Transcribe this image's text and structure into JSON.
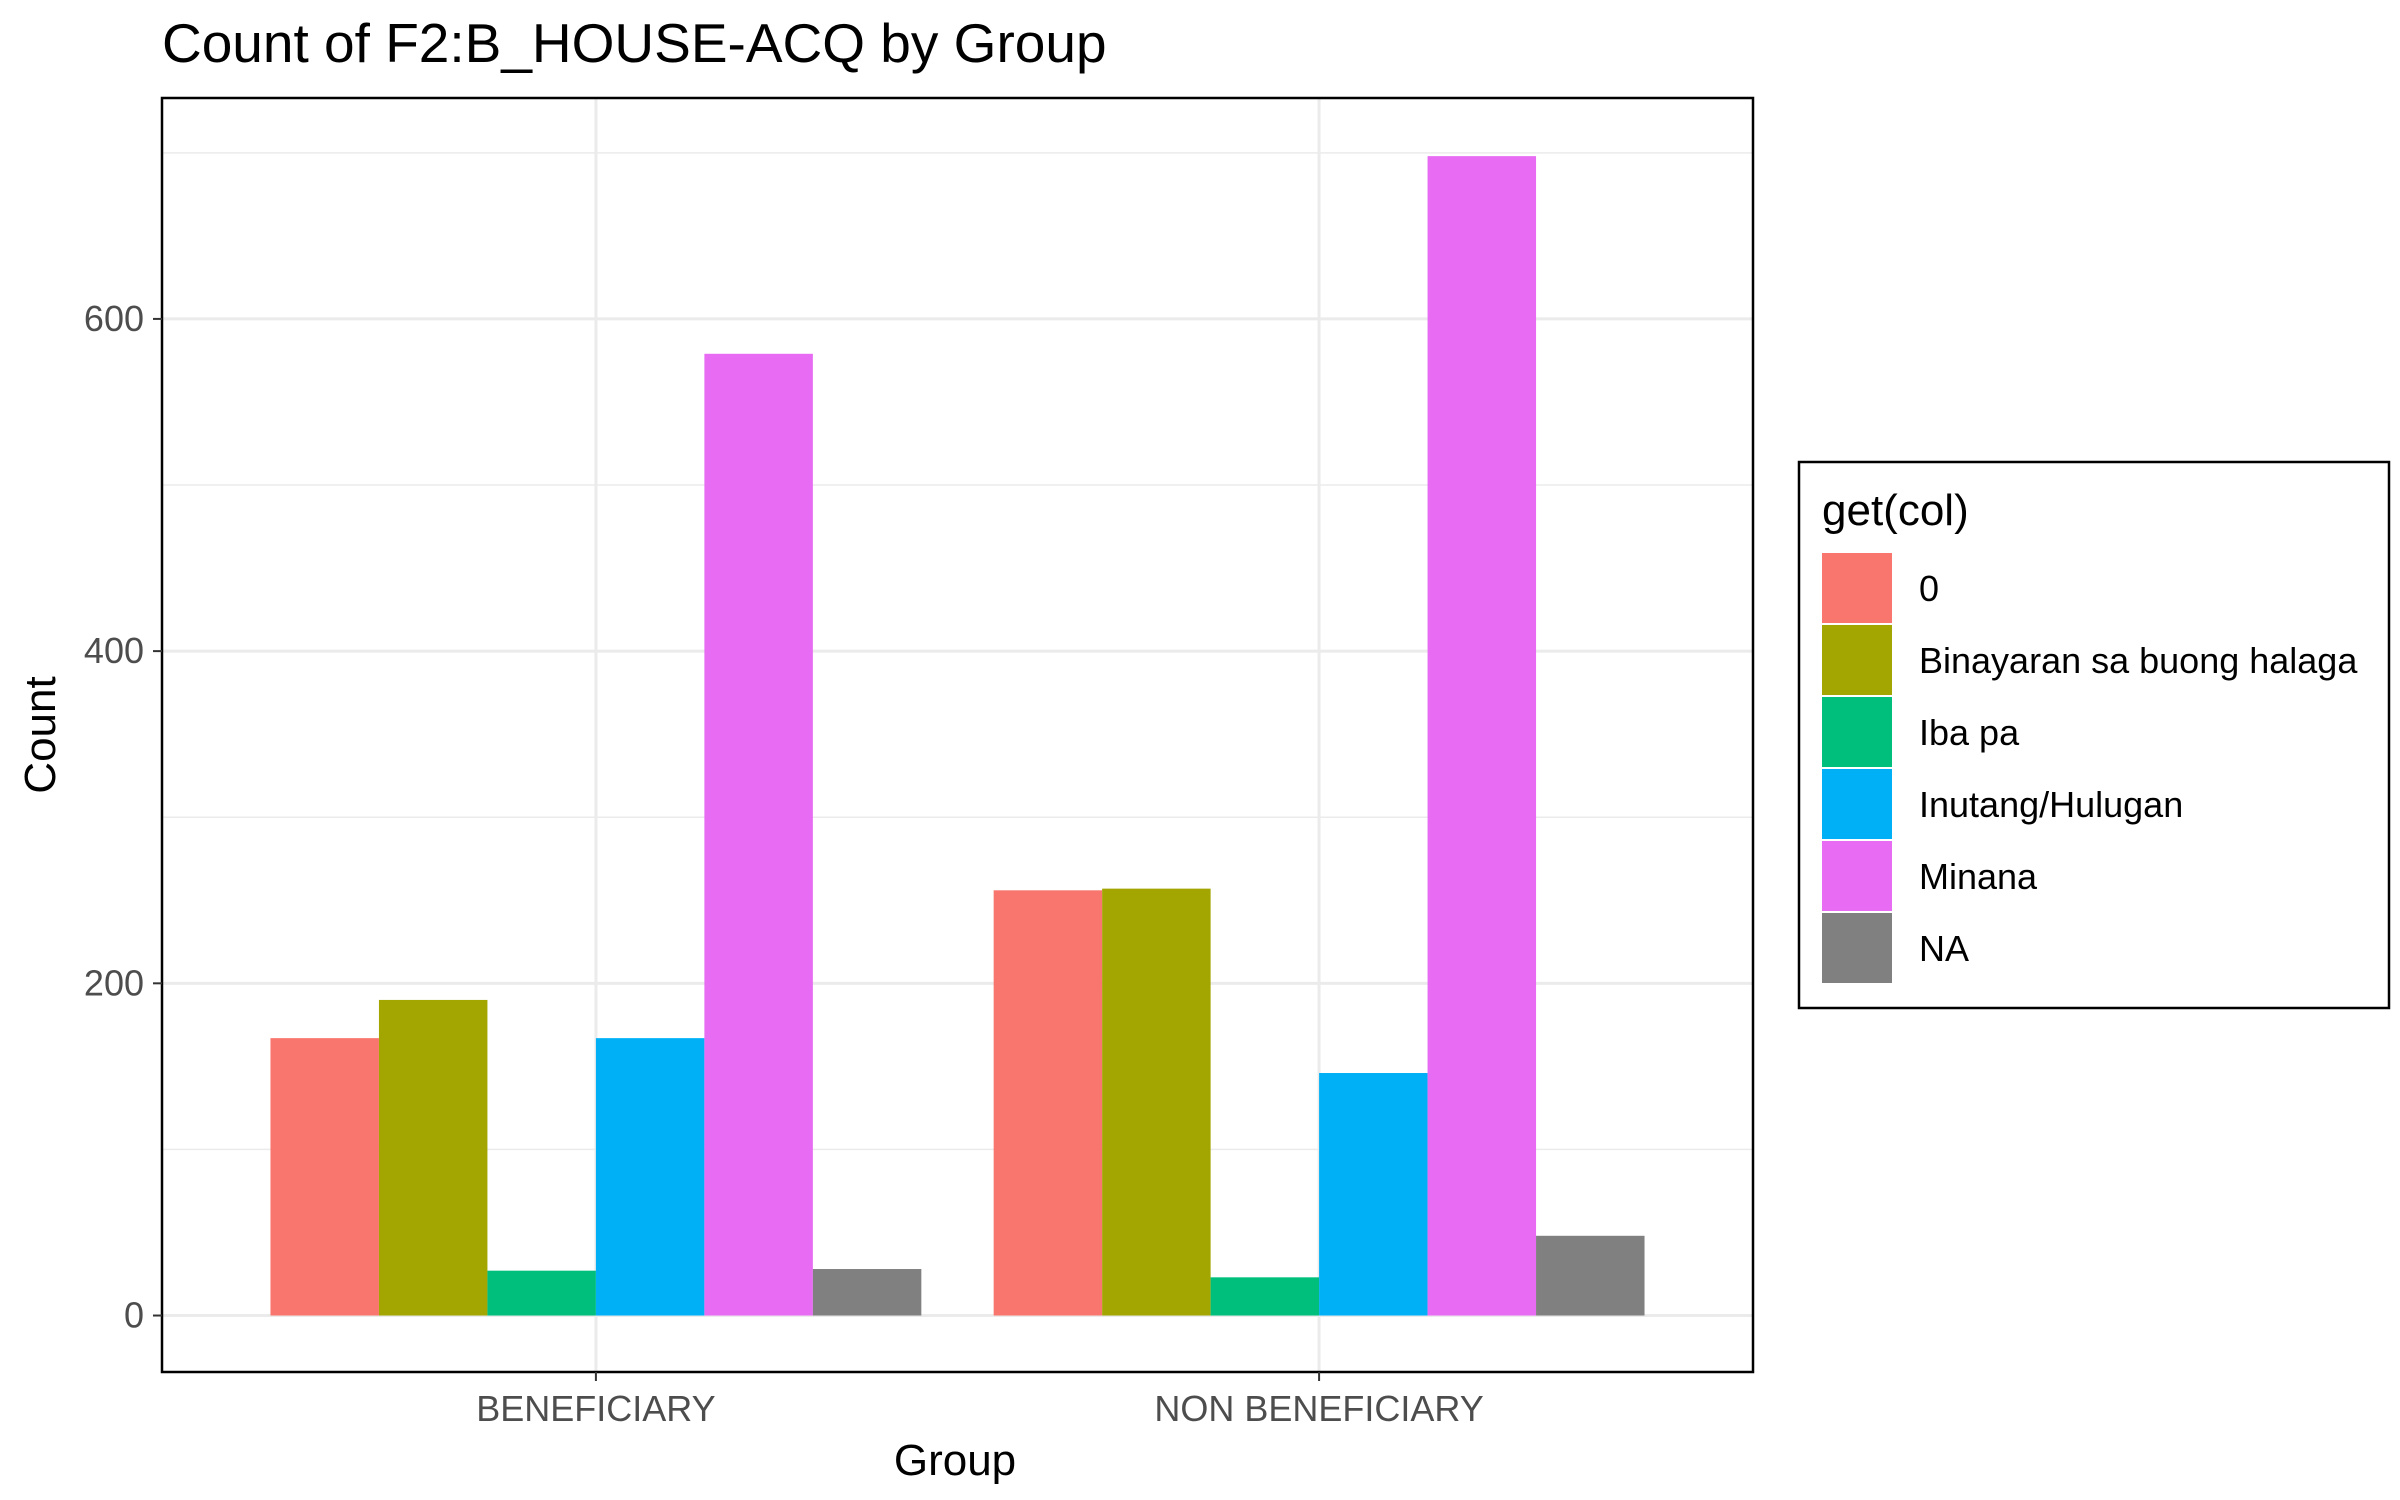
{
  "chart_data": {
    "type": "bar",
    "title": "Count of F2:B_HOUSE-ACQ by Group",
    "xlabel": "Group",
    "ylabel": "Count",
    "categories": [
      "BENEFICIARY",
      "NON BENEFICIARY"
    ],
    "ylim": [
      -34,
      733
    ],
    "yticks": [
      0,
      200,
      400,
      600
    ],
    "grid": true,
    "legend": {
      "title": "get(col)",
      "position": "right"
    },
    "series": [
      {
        "name": "0",
        "color": "#F8766D",
        "values": [
          167,
          256
        ]
      },
      {
        "name": "Binayaran sa buong halaga",
        "color": "#A3A500",
        "values": [
          190,
          257
        ]
      },
      {
        "name": "Iba pa",
        "color": "#00BF7D",
        "values": [
          27,
          23
        ]
      },
      {
        "name": "Inutang/Hulugan",
        "color": "#00B0F6",
        "values": [
          167,
          146
        ]
      },
      {
        "name": "Minana",
        "color": "#E76BF3",
        "values": [
          579,
          698
        ]
      },
      {
        "name": "NA",
        "color": "#808080",
        "values": [
          28,
          48
        ]
      }
    ]
  }
}
